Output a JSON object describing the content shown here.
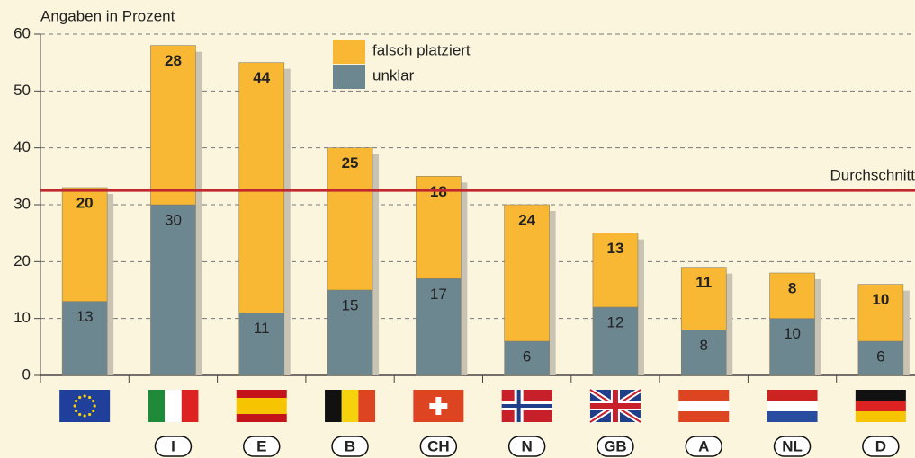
{
  "chart_data": {
    "type": "stacked_bar",
    "y_axis_label": "Angaben in Prozent",
    "categories": [
      null,
      "I",
      "E",
      "B",
      "CH",
      "N",
      "GB",
      "A",
      "NL",
      "D"
    ],
    "series": [
      {
        "name": "unklar",
        "color": "#6d8791",
        "values": [
          13,
          30,
          11,
          15,
          17,
          6,
          12,
          8,
          10,
          6
        ]
      },
      {
        "name": "falsch platziert",
        "color": "#f8b833",
        "values": [
          20,
          28,
          44,
          25,
          18,
          24,
          13,
          11,
          8,
          10
        ]
      }
    ],
    "reference_line": {
      "value": 32.5,
      "label": "Durchschnitt",
      "color": "#c1272d"
    },
    "ylim": [
      0,
      60
    ],
    "yticks": [
      0,
      10,
      20,
      30,
      40,
      50,
      60
    ],
    "grid": true,
    "legend": "top"
  }
}
